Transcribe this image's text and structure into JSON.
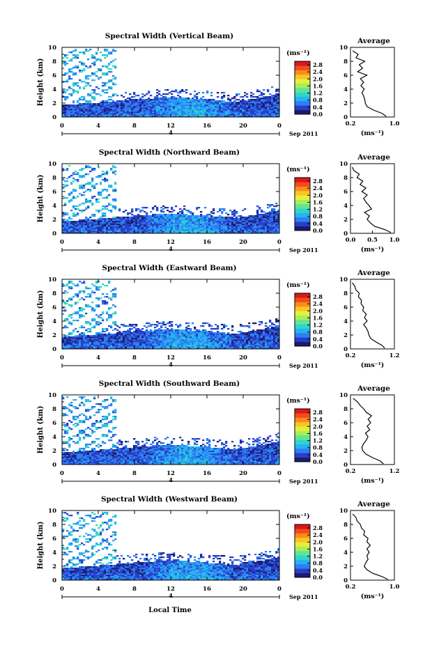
{
  "figure": {
    "xlabel": "Local Time",
    "date_label": "Sep 2011",
    "date_tick": "4",
    "colorbar_unit": "(ms⁻¹)",
    "ylabel": "Height (km)",
    "avg_title": "Average",
    "avg_xlabel": "(ms⁻¹)",
    "colorbar_colors": [
      "#1c1c6e",
      "#2a3fc8",
      "#2d7ff2",
      "#27b3f2",
      "#2fd5c8",
      "#63e394",
      "#a6ee5c",
      "#e5ef3b",
      "#fbc524",
      "#fa8c1e",
      "#f44a1e",
      "#d81a18"
    ]
  },
  "chart_data": [
    {
      "type": "heatmap",
      "title": "Spectral Width (Vertical Beam)",
      "x_ticks": [
        "0",
        "4",
        "8",
        "12",
        "16",
        "20",
        "0"
      ],
      "xlim": [
        0,
        24
      ],
      "y_ticks": [
        "0",
        "2",
        "4",
        "6",
        "8",
        "10"
      ],
      "ylim": [
        0,
        10
      ],
      "colorbar_ticks": [
        "2.8",
        "2.4",
        "2.0",
        "1.6",
        "1.2",
        "0.8",
        "0.4",
        "0.0"
      ],
      "colorbar_range": [
        0,
        3.0
      ],
      "avg_x_ticks": [
        "0.2",
        "1.0"
      ],
      "avg_xlim": [
        0.2,
        1.0
      ],
      "avg_profile": {
        "height": [
          0.1,
          0.5,
          1.0,
          1.5,
          2.0,
          2.5,
          3.0,
          3.5,
          4.0,
          4.5,
          5.0,
          5.5,
          6.0,
          6.5,
          7.0,
          7.5,
          8.0,
          8.5,
          9.0,
          9.5
        ],
        "width": [
          0.85,
          0.78,
          0.62,
          0.5,
          0.47,
          0.46,
          0.44,
          0.41,
          0.45,
          0.39,
          0.44,
          0.38,
          0.5,
          0.33,
          0.42,
          0.36,
          0.46,
          0.3,
          0.34,
          0.24
        ]
      }
    },
    {
      "type": "heatmap",
      "title": "Spectral Width (Northward Beam)",
      "x_ticks": [
        "0",
        "4",
        "8",
        "12",
        "16",
        "20",
        "0"
      ],
      "xlim": [
        0,
        24
      ],
      "y_ticks": [
        "0",
        "2",
        "4",
        "6",
        "8",
        "10"
      ],
      "ylim": [
        0,
        10
      ],
      "colorbar_ticks": [
        "2.8",
        "2.4",
        "2.0",
        "1.6",
        "1.2",
        "0.8",
        "0.4",
        "0.0"
      ],
      "colorbar_range": [
        0,
        3.0
      ],
      "avg_x_ticks": [
        "0.0",
        "0.5",
        "1.0"
      ],
      "avg_xlim": [
        0.0,
        1.0
      ],
      "avg_profile": {
        "height": [
          0.1,
          0.5,
          1.0,
          1.5,
          2.0,
          2.5,
          3.0,
          3.5,
          4.0,
          4.5,
          5.0,
          5.5,
          6.0,
          6.5,
          7.0,
          7.5,
          8.0,
          8.5,
          9.0,
          9.5
        ],
        "width": [
          0.92,
          0.8,
          0.55,
          0.45,
          0.38,
          0.43,
          0.32,
          0.48,
          0.42,
          0.35,
          0.3,
          0.38,
          0.26,
          0.35,
          0.22,
          0.28,
          0.15,
          0.2,
          0.08,
          0.04
        ]
      }
    },
    {
      "type": "heatmap",
      "title": "Spectral Width (Eastward Beam)",
      "x_ticks": [
        "0",
        "4",
        "8",
        "12",
        "16",
        "20",
        "0"
      ],
      "xlim": [
        0,
        24
      ],
      "y_ticks": [
        "0",
        "2",
        "4",
        "6",
        "8",
        "10"
      ],
      "ylim": [
        0,
        10
      ],
      "colorbar_ticks": [
        "2.8",
        "2.4",
        "2.0",
        "1.6",
        "1.2",
        "0.8",
        "0.4",
        "0.0"
      ],
      "colorbar_range": [
        0,
        3.0
      ],
      "avg_x_ticks": [
        "0.2",
        "1.2"
      ],
      "avg_xlim": [
        0.2,
        1.2
      ],
      "avg_profile": {
        "height": [
          0.1,
          0.5,
          1.0,
          1.5,
          2.0,
          2.5,
          3.0,
          3.5,
          4.0,
          4.5,
          5.0,
          5.5,
          6.0,
          6.5,
          7.0,
          7.5,
          8.0,
          8.5,
          9.0,
          9.5
        ],
        "width": [
          0.98,
          0.92,
          0.78,
          0.66,
          0.62,
          0.6,
          0.56,
          0.5,
          0.58,
          0.52,
          0.56,
          0.48,
          0.5,
          0.44,
          0.45,
          0.38,
          0.4,
          0.32,
          0.3,
          0.24
        ]
      }
    },
    {
      "type": "heatmap",
      "title": "Spectral Width (Southward Beam)",
      "x_ticks": [
        "0",
        "4",
        "8",
        "12",
        "16",
        "20",
        "0"
      ],
      "xlim": [
        0,
        24
      ],
      "y_ticks": [
        "0",
        "2",
        "4",
        "6",
        "8",
        "10"
      ],
      "ylim": [
        0,
        10
      ],
      "colorbar_ticks": [
        "2.8",
        "2.4",
        "2.0",
        "1.6",
        "1.2",
        "0.8",
        "0.4",
        "0.0"
      ],
      "colorbar_range": [
        0,
        3.0
      ],
      "avg_x_ticks": [
        "0.2",
        "1.2"
      ],
      "avg_xlim": [
        0.2,
        1.2
      ],
      "avg_profile": {
        "height": [
          0.1,
          0.5,
          1.0,
          1.5,
          2.0,
          2.5,
          3.0,
          3.5,
          4.0,
          4.5,
          5.0,
          5.5,
          6.0,
          6.5,
          7.0,
          7.5,
          8.0,
          8.5,
          9.0,
          9.5
        ],
        "width": [
          0.95,
          0.88,
          0.7,
          0.55,
          0.48,
          0.46,
          0.5,
          0.56,
          0.6,
          0.54,
          0.64,
          0.58,
          0.66,
          0.6,
          0.68,
          0.56,
          0.5,
          0.42,
          0.36,
          0.26
        ]
      }
    },
    {
      "type": "heatmap",
      "title": "Spectral Width (Westward Beam)",
      "x_ticks": [
        "0",
        "4",
        "8",
        "12",
        "16",
        "20",
        "0"
      ],
      "xlim": [
        0,
        24
      ],
      "y_ticks": [
        "0",
        "2",
        "4",
        "6",
        "8",
        "10"
      ],
      "ylim": [
        0,
        10
      ],
      "colorbar_ticks": [
        "2.8",
        "2.4",
        "2.0",
        "1.6",
        "1.2",
        "0.8",
        "0.4",
        "0.0"
      ],
      "colorbar_range": [
        0,
        3.0
      ],
      "avg_x_ticks": [
        "0.2",
        "1.0"
      ],
      "avg_xlim": [
        0.2,
        1.0
      ],
      "avg_profile": {
        "height": [
          0.1,
          0.5,
          1.0,
          1.5,
          2.0,
          2.5,
          3.0,
          3.5,
          4.0,
          4.5,
          5.0,
          5.5,
          6.0,
          6.5,
          7.0,
          7.5,
          8.0,
          8.5,
          9.0,
          9.5
        ],
        "width": [
          0.88,
          0.78,
          0.6,
          0.5,
          0.45,
          0.48,
          0.52,
          0.5,
          0.54,
          0.5,
          0.56,
          0.5,
          0.52,
          0.44,
          0.46,
          0.4,
          0.38,
          0.32,
          0.3,
          0.24
        ]
      }
    }
  ]
}
